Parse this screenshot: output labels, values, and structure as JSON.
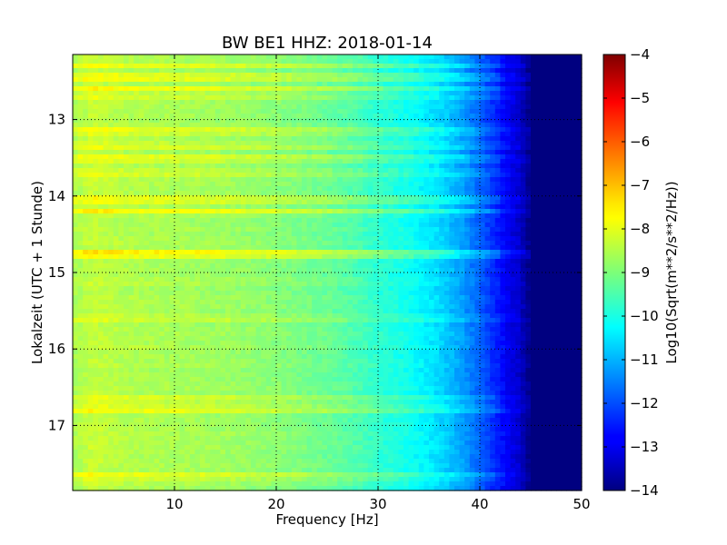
{
  "chart_data": {
    "type": "heatmap",
    "title": "BW BE1 HHZ: 2018-01-14",
    "xlabel": "Frequency [Hz]",
    "ylabel": "Lokalzeit (UTC + 1 Stunde)",
    "colorbar_label": "Log10(Sqrt(m**2/s**2/Hz))",
    "colormap": "jet",
    "grid": true,
    "xlim": [
      0,
      50
    ],
    "ylim": [
      12.15,
      17.85
    ],
    "y_inverted": true,
    "clim": [
      -14,
      -4
    ],
    "x_ticks": [
      10,
      20,
      30,
      40,
      50
    ],
    "x_tick_labels": [
      "10",
      "20",
      "30",
      "40",
      "50"
    ],
    "y_ticks": [
      13,
      14,
      15,
      16,
      17
    ],
    "y_tick_labels": [
      "13",
      "14",
      "15",
      "16",
      "17"
    ],
    "colorbar_ticks": [
      -4,
      -5,
      -6,
      -7,
      -8,
      -9,
      -10,
      -11,
      -12,
      -13,
      -14
    ],
    "colorbar_tick_labels": [
      "−4",
      "−5",
      "−6",
      "−7",
      "−8",
      "−9",
      "−10",
      "−11",
      "−12",
      "−13",
      "−14"
    ],
    "spectrum_profile": {
      "frequency_hz": [
        0,
        2,
        5,
        10,
        15,
        20,
        25,
        28,
        30,
        33,
        36,
        38,
        40,
        42,
        44,
        45,
        50
      ],
      "log10_amplitude": [
        -8.6,
        -8.3,
        -8.5,
        -8.6,
        -8.7,
        -8.9,
        -9.2,
        -9.5,
        -9.8,
        -10.1,
        -10.6,
        -11.1,
        -11.8,
        -12.6,
        -13.3,
        -14,
        -14
      ]
    },
    "bright_bands": [
      {
        "time_h": 12.3,
        "delta": 0.6
      },
      {
        "time_h": 12.45,
        "delta": 0.9
      },
      {
        "time_h": 12.6,
        "delta": 0.7
      },
      {
        "time_h": 12.7,
        "delta": 0.5
      },
      {
        "time_h": 13.15,
        "delta": 0.7
      },
      {
        "time_h": 13.35,
        "delta": 0.6
      },
      {
        "time_h": 13.5,
        "delta": 0.7
      },
      {
        "time_h": 13.7,
        "delta": 0.5
      },
      {
        "time_h": 14.05,
        "delta": 0.8
      },
      {
        "time_h": 14.2,
        "delta": 0.7
      },
      {
        "time_h": 14.75,
        "delta": 1.2
      },
      {
        "time_h": 15.6,
        "delta": 0.4
      },
      {
        "time_h": 16.65,
        "delta": 0.5
      },
      {
        "time_h": 16.8,
        "delta": 0.7
      },
      {
        "time_h": 17.65,
        "delta": 0.6
      }
    ]
  }
}
